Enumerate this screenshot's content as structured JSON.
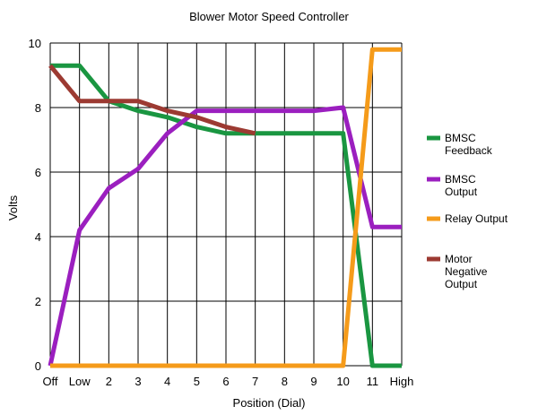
{
  "chart_data": {
    "type": "line",
    "title": "Blower Motor Speed Controller",
    "xlabel": "Position (Dial)",
    "ylabel": "Volts",
    "categories": [
      "Off",
      "Low",
      "2",
      "3",
      "4",
      "5",
      "6",
      "7",
      "8",
      "9",
      "10",
      "11",
      "High"
    ],
    "yticks": [
      "0",
      "2",
      "4",
      "6",
      "8",
      "10"
    ],
    "ylim": [
      0,
      10
    ],
    "grid": true,
    "legend_position": "right",
    "series": [
      {
        "name": "BMSC Feedback",
        "name_lines": [
          "BMSC",
          "Feedback"
        ],
        "color": "#1a9641",
        "values": [
          9.3,
          9.3,
          8.2,
          7.9,
          7.7,
          7.4,
          7.2,
          7.2,
          7.2,
          7.2,
          7.2,
          0.0,
          0.0
        ]
      },
      {
        "name": "BMSC Output",
        "name_lines": [
          "BMSC",
          "Output"
        ],
        "color": "#9b1fbf",
        "values": [
          0.0,
          4.2,
          5.5,
          6.1,
          7.2,
          7.9,
          7.9,
          7.9,
          7.9,
          7.9,
          8.0,
          4.3,
          4.3
        ]
      },
      {
        "name": "Relay Output",
        "name_lines": [
          "Relay Output"
        ],
        "color": "#f59b1a",
        "values": [
          0.0,
          0.0,
          0.0,
          0.0,
          0.0,
          0.0,
          0.0,
          0.0,
          0.0,
          0.0,
          0.0,
          9.8,
          9.8
        ]
      },
      {
        "name": "Motor Negative Output",
        "name_lines": [
          "Motor",
          "Negative",
          "Output"
        ],
        "color": "#9c3a32",
        "values": [
          9.3,
          8.2,
          8.2,
          8.2,
          7.9,
          7.7,
          7.4,
          7.2,
          null,
          null,
          null,
          null,
          null
        ]
      }
    ]
  }
}
